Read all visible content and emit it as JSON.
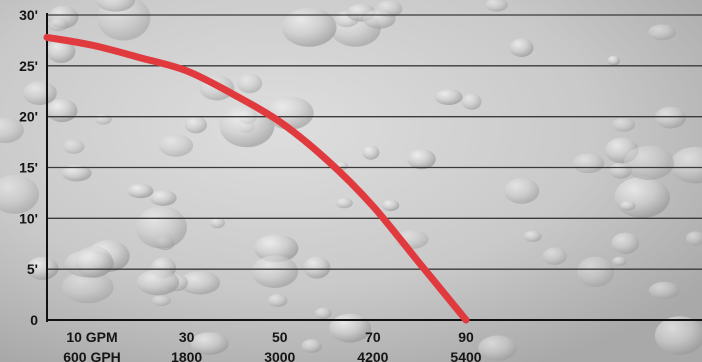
{
  "chart_data": {
    "type": "line",
    "title": "",
    "xlabel": "",
    "ylabel": "",
    "y_tick_labels": [
      "0",
      "5'",
      "10'",
      "15'",
      "20'",
      "25'",
      "30'"
    ],
    "x_tick_labels": [
      {
        "gpm": "10 GPM",
        "gph": "600 GPH"
      },
      {
        "gpm": "30",
        "gph": "1800"
      },
      {
        "gpm": "50",
        "gph": "3000"
      },
      {
        "gpm": "70",
        "gph": "4200"
      },
      {
        "gpm": "90",
        "gph": "5400"
      }
    ],
    "ylim": [
      0,
      30
    ],
    "x_unit": "GPM",
    "y_unit": "feet",
    "grid": true,
    "series": [
      {
        "x": [
          0,
          10,
          20,
          30,
          40,
          50,
          60,
          70,
          80,
          90
        ],
        "y": [
          27.8,
          27.0,
          25.8,
          24.5,
          22.2,
          19.5,
          15.8,
          11.2,
          5.6,
          0
        ],
        "color": "#e03a3e"
      }
    ]
  },
  "colors": {
    "curve": "#e03a3e",
    "gridline": "#3a3a3a",
    "axis": "#111111",
    "background": "#d2d2d2"
  }
}
